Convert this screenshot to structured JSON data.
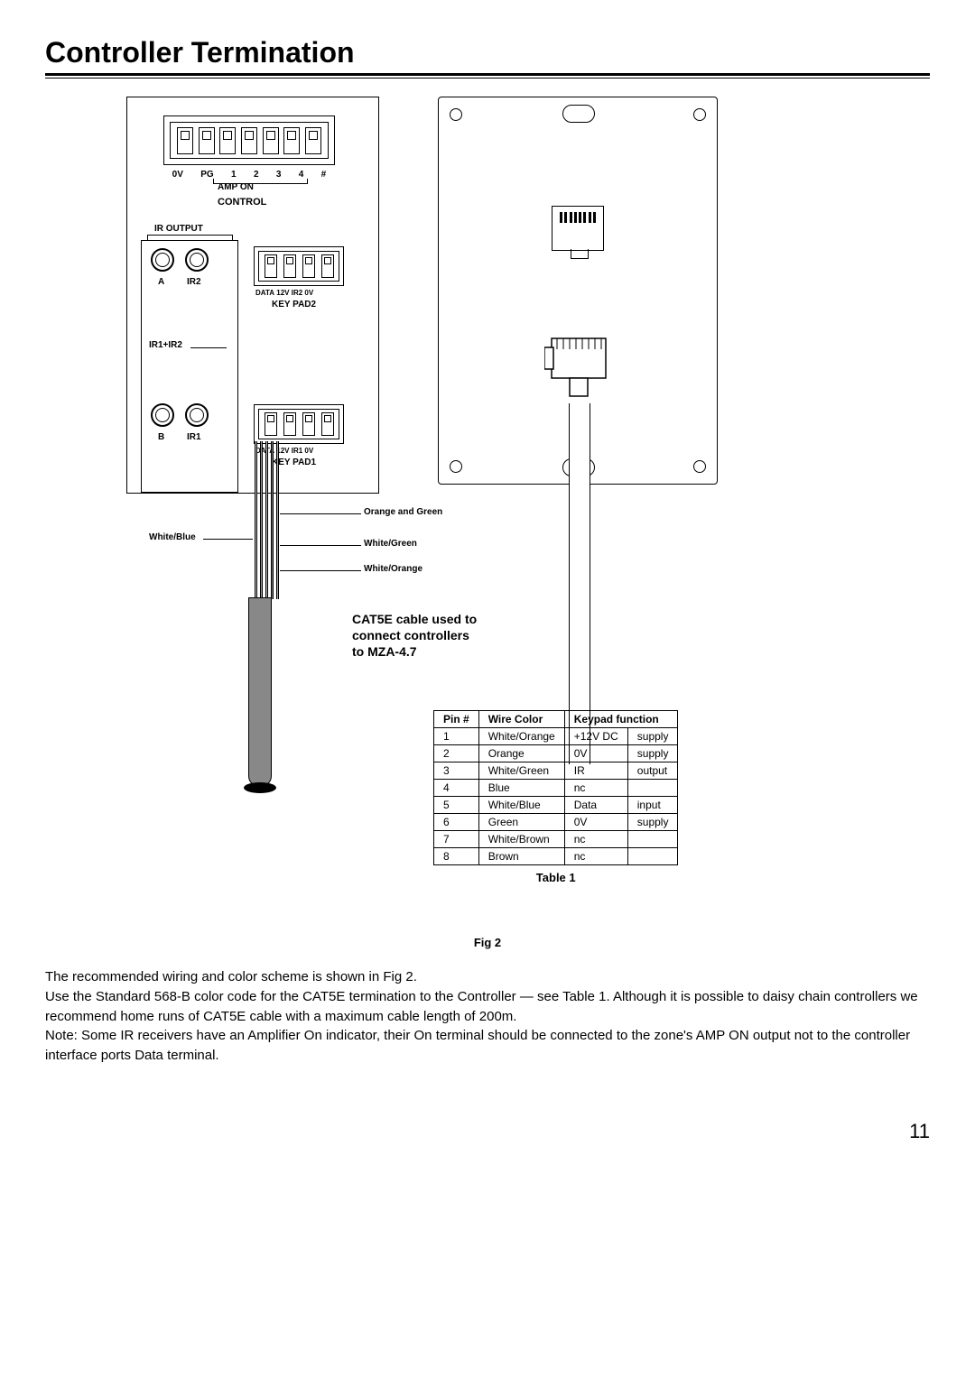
{
  "page": {
    "title": "Controller Termination",
    "number": "11"
  },
  "controller": {
    "top_pins": [
      "0V",
      "PG",
      "1",
      "2",
      "3",
      "4",
      "#"
    ],
    "amp_on": "AMP ON",
    "control": "CONTROL",
    "ir_output": "IR OUTPUT",
    "ports": {
      "A": "A",
      "IR2": "IR2",
      "B": "B",
      "IR1": "IR1",
      "IR1IR2": "IR1+IR2"
    },
    "keypad2": {
      "label": "KEY PAD2",
      "pins": [
        "DATA",
        "12V",
        "IR2",
        "0V"
      ]
    },
    "keypad1": {
      "label": "KEY PAD1",
      "pins": [
        "DATA",
        "12V",
        "IR1",
        "0V"
      ]
    }
  },
  "wires": {
    "white_blue": "White/Blue",
    "orange_green": "Orange and Green",
    "white_green": "White/Green",
    "white_orange": "White/Orange"
  },
  "cable_note": "CAT5E cable used to\nconnect controllers\nto MZA-4.7",
  "pin_table": {
    "caption": "Table 1",
    "headers": [
      "Pin #",
      "Wire Color",
      "Keypad function",
      ""
    ],
    "rows": [
      [
        "1",
        "White/Orange",
        "+12V DC",
        "supply"
      ],
      [
        "2",
        "Orange",
        "0V",
        "supply"
      ],
      [
        "3",
        "White/Green",
        "IR",
        "output"
      ],
      [
        "4",
        "Blue",
        "nc",
        ""
      ],
      [
        "5",
        "White/Blue",
        "Data",
        "input"
      ],
      [
        "6",
        "Green",
        "0V",
        "supply"
      ],
      [
        "7",
        "White/Brown",
        "nc",
        ""
      ],
      [
        "8",
        "Brown",
        "nc",
        ""
      ]
    ]
  },
  "fig_caption": "Fig 2",
  "body": {
    "p1": "The recommended wiring and color scheme is shown in Fig 2.",
    "p2": "Use the Standard 568-B color code for the CAT5E termination to the Controller — see Table 1. Although it is possible to daisy chain controllers we recommend home runs of CAT5E cable with a maximum cable length of 200m.",
    "p3": "Note: Some IR receivers have an Amplifier On indicator, their On terminal should be connected to the zone's AMP ON output not to the controller interface ports Data terminal."
  },
  "colors": {
    "line": "#000000",
    "cable_sheath": "#888888",
    "background": "#ffffff"
  }
}
